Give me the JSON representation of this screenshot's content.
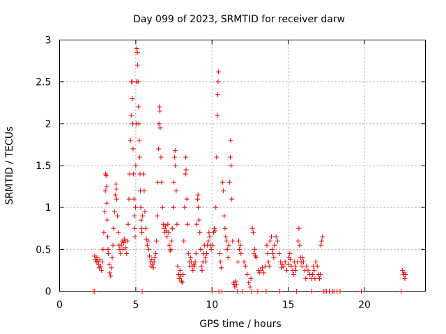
{
  "chart_data": {
    "type": "scatter",
    "title": "Day 099 of 2023, SRMTID for receiver darw",
    "xlabel": "GPS time / hours",
    "ylabel": "SRMTID / TECUs",
    "xlim": [
      0,
      24
    ],
    "ylim": [
      0,
      3
    ],
    "xticks": [
      0,
      5,
      10,
      15,
      20
    ],
    "xtick_labels": [
      "0",
      "5",
      "10",
      "15",
      "20"
    ],
    "yticks": [
      0,
      0.5,
      1,
      1.5,
      2,
      2.5,
      3
    ],
    "ytick_labels": [
      "0",
      "0.5",
      "1",
      "1.5",
      "2",
      "2.5",
      "3"
    ],
    "grid": true,
    "marker": "+",
    "color": "#e00000",
    "series": [
      {
        "name": "darw",
        "points": [
          [
            2.2,
            0.0
          ],
          [
            2.3,
            0.0
          ],
          [
            2.3,
            0.42
          ],
          [
            2.35,
            0.38
          ],
          [
            2.4,
            0.35
          ],
          [
            2.45,
            0.4
          ],
          [
            2.5,
            0.36
          ],
          [
            2.55,
            0.32
          ],
          [
            2.6,
            0.28
          ],
          [
            2.65,
            0.38
          ],
          [
            2.7,
            0.3
          ],
          [
            2.75,
            0.25
          ],
          [
            2.8,
            0.35
          ],
          [
            2.85,
            0.5
          ],
          [
            2.9,
            0.7
          ],
          [
            2.95,
            0.95
          ],
          [
            3.0,
            1.2
          ],
          [
            3.02,
            1.4
          ],
          [
            3.05,
            1.38
          ],
          [
            3.08,
            1.25
          ],
          [
            3.1,
            1.05
          ],
          [
            3.12,
            0.85
          ],
          [
            3.15,
            0.65
          ],
          [
            3.18,
            0.5
          ],
          [
            3.2,
            0.45
          ],
          [
            3.25,
            0.32
          ],
          [
            3.3,
            0.22
          ],
          [
            3.35,
            0.18
          ],
          [
            3.4,
            0.28
          ],
          [
            3.45,
            0.4
          ],
          [
            3.5,
            0.55
          ],
          [
            3.55,
            0.75
          ],
          [
            3.6,
            0.95
          ],
          [
            3.65,
            1.15
          ],
          [
            3.7,
            1.28
          ],
          [
            3.72,
            1.22
          ],
          [
            3.75,
            1.1
          ],
          [
            3.8,
            0.9
          ],
          [
            3.85,
            0.7
          ],
          [
            3.9,
            0.55
          ],
          [
            3.95,
            0.5
          ],
          [
            4.0,
            0.45
          ],
          [
            4.05,
            0.55
          ],
          [
            4.1,
            0.6
          ],
          [
            4.15,
            0.5
          ],
          [
            4.2,
            0.58
          ],
          [
            4.25,
            0.62
          ],
          [
            4.3,
            0.6
          ],
          [
            4.35,
            0.52
          ],
          [
            4.4,
            0.45
          ],
          [
            4.45,
            0.6
          ],
          [
            4.5,
            0.8
          ],
          [
            4.55,
            1.1
          ],
          [
            4.6,
            1.4
          ],
          [
            4.65,
            1.8
          ],
          [
            4.7,
            2.1
          ],
          [
            4.72,
            2.5
          ],
          [
            4.75,
            2.5
          ],
          [
            4.78,
            2.3
          ],
          [
            4.8,
            2.0
          ],
          [
            4.82,
            1.7
          ],
          [
            4.85,
            1.4
          ],
          [
            4.88,
            1.1
          ],
          [
            4.9,
            0.9
          ],
          [
            4.93,
            0.75
          ],
          [
            4.95,
            0.65
          ],
          [
            4.98,
            1.0
          ],
          [
            5.0,
            1.5
          ],
          [
            5.02,
            2.0
          ],
          [
            5.05,
            2.5
          ],
          [
            5.07,
            2.9
          ],
          [
            5.1,
            2.85
          ],
          [
            5.12,
            2.7
          ],
          [
            5.15,
            2.5
          ],
          [
            5.18,
            2.2
          ],
          [
            5.2,
            2.0
          ],
          [
            5.23,
            1.8
          ],
          [
            5.25,
            1.6
          ],
          [
            5.28,
            1.4
          ],
          [
            5.3,
            1.2
          ],
          [
            5.33,
            1.0
          ],
          [
            5.35,
            0.85
          ],
          [
            5.38,
            0.75
          ],
          [
            5.4,
            0.7
          ],
          [
            5.42,
            0.0
          ],
          [
            5.45,
            0.9
          ],
          [
            5.5,
            1.4
          ],
          [
            5.55,
            1.2
          ],
          [
            5.6,
            0.95
          ],
          [
            5.65,
            0.75
          ],
          [
            5.7,
            0.62
          ],
          [
            5.75,
            0.55
          ],
          [
            5.8,
            0.6
          ],
          [
            5.85,
            0.5
          ],
          [
            5.9,
            0.42
          ],
          [
            5.95,
            0.35
          ],
          [
            6.0,
            0.3
          ],
          [
            6.05,
            0.38
          ],
          [
            6.1,
            0.32
          ],
          [
            6.15,
            0.28
          ],
          [
            6.2,
            0.35
          ],
          [
            6.25,
            0.4
          ],
          [
            6.3,
            0.45
          ],
          [
            6.35,
            0.6
          ],
          [
            6.4,
            0.9
          ],
          [
            6.45,
            1.3
          ],
          [
            6.5,
            1.7
          ],
          [
            6.52,
            2.0
          ],
          [
            6.55,
            2.2
          ],
          [
            6.58,
            2.15
          ],
          [
            6.6,
            1.95
          ],
          [
            6.65,
            1.6
          ],
          [
            6.7,
            1.3
          ],
          [
            6.75,
            1.0
          ],
          [
            6.8,
            0.8
          ],
          [
            6.85,
            0.75
          ],
          [
            6.9,
            0.7
          ],
          [
            6.95,
            0.78
          ],
          [
            7.0,
            0.72
          ],
          [
            7.05,
            0.65
          ],
          [
            7.1,
            0.8
          ],
          [
            7.15,
            0.7
          ],
          [
            7.2,
            0.55
          ],
          [
            7.25,
            0.48
          ],
          [
            7.3,
            0.5
          ],
          [
            7.35,
            0.6
          ],
          [
            7.4,
            0.75
          ],
          [
            7.45,
            1.0
          ],
          [
            7.5,
            1.3
          ],
          [
            7.55,
            1.6
          ],
          [
            7.58,
            1.68
          ],
          [
            7.6,
            1.5
          ],
          [
            7.65,
            1.2
          ],
          [
            7.7,
            0.8
          ],
          [
            7.75,
            0.3
          ],
          [
            7.8,
            0.2
          ],
          [
            7.85,
            0.15
          ],
          [
            7.9,
            0.25
          ],
          [
            7.95,
            0.18
          ],
          [
            8.0,
            0.12
          ],
          [
            8.05,
            0.1
          ],
          [
            8.1,
            0.2
          ],
          [
            8.15,
            0.6
          ],
          [
            8.2,
            1.0
          ],
          [
            8.25,
            1.4
          ],
          [
            8.28,
            1.6
          ],
          [
            8.3,
            1.45
          ],
          [
            8.35,
            1.1
          ],
          [
            8.4,
            0.8
          ],
          [
            8.45,
            0.45
          ],
          [
            8.5,
            0.35
          ],
          [
            8.55,
            0.3
          ],
          [
            8.6,
            0.4
          ],
          [
            8.65,
            0.35
          ],
          [
            8.7,
            0.3
          ],
          [
            8.75,
            0.25
          ],
          [
            8.8,
            0.32
          ],
          [
            8.85,
            0.3
          ],
          [
            8.9,
            0.35
          ],
          [
            8.95,
            0.45
          ],
          [
            9.0,
            0.8
          ],
          [
            9.05,
            1.1
          ],
          [
            9.08,
            1.15
          ],
          [
            9.1,
            1.0
          ],
          [
            9.15,
            0.85
          ],
          [
            9.2,
            0.7
          ],
          [
            9.25,
            0.5
          ],
          [
            9.3,
            0.3
          ],
          [
            9.35,
            0.25
          ],
          [
            9.4,
            0.35
          ],
          [
            9.45,
            0.45
          ],
          [
            9.5,
            0.55
          ],
          [
            9.55,
            0.4
          ],
          [
            9.6,
            0.35
          ],
          [
            9.65,
            0.45
          ],
          [
            9.7,
            0.55
          ],
          [
            9.75,
            0.6
          ],
          [
            9.8,
            0.7
          ],
          [
            9.85,
            0.65
          ],
          [
            9.9,
            0.55
          ],
          [
            9.95,
            0.5
          ],
          [
            10.0,
            0.0
          ],
          [
            10.05,
            0.55
          ],
          [
            10.1,
            0.7
          ],
          [
            10.15,
            0.75
          ],
          [
            10.2,
            0.72
          ],
          [
            10.25,
            1.0
          ],
          [
            10.3,
            1.6
          ],
          [
            10.35,
            2.1
          ],
          [
            10.38,
            2.35
          ],
          [
            10.4,
            2.5
          ],
          [
            10.42,
            2.62
          ],
          [
            10.45,
            0.0
          ],
          [
            10.5,
            0.45
          ],
          [
            10.55,
            0.35
          ],
          [
            10.6,
            0.28
          ],
          [
            10.65,
            0.0
          ],
          [
            10.7,
            1.3
          ],
          [
            10.75,
            1.2
          ],
          [
            10.8,
            0.9
          ],
          [
            10.85,
            0.75
          ],
          [
            10.9,
            0.65
          ],
          [
            10.95,
            0.6
          ],
          [
            11.0,
            0.5
          ],
          [
            11.05,
            0.4
          ],
          [
            11.1,
            0.55
          ],
          [
            11.15,
            1.3
          ],
          [
            11.2,
            1.6
          ],
          [
            11.22,
            1.8
          ],
          [
            11.25,
            1.5
          ],
          [
            11.3,
            1.1
          ],
          [
            11.35,
            0.6
          ],
          [
            11.4,
            0.1
          ],
          [
            11.45,
            0.08
          ],
          [
            11.5,
            0.05
          ],
          [
            11.55,
            0.12
          ],
          [
            11.6,
            0.08
          ],
          [
            11.65,
            0.0
          ],
          [
            11.7,
            0.35
          ],
          [
            11.75,
            0.6
          ],
          [
            11.8,
            0.5
          ],
          [
            11.85,
            0.55
          ],
          [
            11.9,
            0.45
          ],
          [
            12.0,
            0.0
          ],
          [
            12.1,
            0.35
          ],
          [
            12.2,
            0.3
          ],
          [
            12.3,
            0.2
          ],
          [
            12.4,
            0.1
          ],
          [
            12.5,
            0.05
          ],
          [
            12.55,
            0.15
          ],
          [
            12.6,
            0.0
          ],
          [
            12.65,
            0.75
          ],
          [
            12.7,
            0.7
          ],
          [
            12.75,
            0.45
          ],
          [
            12.8,
            0.5
          ],
          [
            12.85,
            0.42
          ],
          [
            12.9,
            0.4
          ],
          [
            13.0,
            0.0
          ],
          [
            13.05,
            0.25
          ],
          [
            13.1,
            0.22
          ],
          [
            13.2,
            0.25
          ],
          [
            13.3,
            0.28
          ],
          [
            13.4,
            0.22
          ],
          [
            13.5,
            0.3
          ],
          [
            13.55,
            0.0
          ],
          [
            13.6,
            0.55
          ],
          [
            13.65,
            0.45
          ],
          [
            13.7,
            0.35
          ],
          [
            13.75,
            0.3
          ],
          [
            13.8,
            0.6
          ],
          [
            13.9,
            0.65
          ],
          [
            13.95,
            0.5
          ],
          [
            14.0,
            0.45
          ],
          [
            14.05,
            0.4
          ],
          [
            14.1,
            0.55
          ],
          [
            14.2,
            0.65
          ],
          [
            14.3,
            0.6
          ],
          [
            14.4,
            0.45
          ],
          [
            14.45,
            0.0
          ],
          [
            14.5,
            0.35
          ],
          [
            14.55,
            0.28
          ],
          [
            14.6,
            0.32
          ],
          [
            14.7,
            0.3
          ],
          [
            14.8,
            0.35
          ],
          [
            14.9,
            0.25
          ],
          [
            15.0,
            0.32
          ],
          [
            15.05,
            0.4
          ],
          [
            15.1,
            0.45
          ],
          [
            15.15,
            0.38
          ],
          [
            15.2,
            0.3
          ],
          [
            15.3,
            0.25
          ],
          [
            15.35,
            0.2
          ],
          [
            15.4,
            0.35
          ],
          [
            15.45,
            0.3
          ],
          [
            15.5,
            0.25
          ],
          [
            15.55,
            0.0
          ],
          [
            15.6,
            0.35
          ],
          [
            15.65,
            0.6
          ],
          [
            15.7,
            0.75
          ],
          [
            15.75,
            0.55
          ],
          [
            15.8,
            0.4
          ],
          [
            15.85,
            0.35
          ],
          [
            15.9,
            0.3
          ],
          [
            15.95,
            0.4
          ],
          [
            16.0,
            0.35
          ],
          [
            16.1,
            0.25
          ],
          [
            16.15,
            0.15
          ],
          [
            16.2,
            0.3
          ],
          [
            16.3,
            0.25
          ],
          [
            16.4,
            0.2
          ],
          [
            16.5,
            0.15
          ],
          [
            16.55,
            0.0
          ],
          [
            16.6,
            0.2
          ],
          [
            16.65,
            0.3
          ],
          [
            16.7,
            0.25
          ],
          [
            16.75,
            0.15
          ],
          [
            16.8,
            0.35
          ],
          [
            16.9,
            0.3
          ],
          [
            17.0,
            0.2
          ],
          [
            17.05,
            0.15
          ],
          [
            17.1,
            0.2
          ],
          [
            17.15,
            0.55
          ],
          [
            17.2,
            0.6
          ],
          [
            17.25,
            0.65
          ],
          [
            17.3,
            0.0
          ],
          [
            17.4,
            0.0
          ],
          [
            17.5,
            0.0
          ],
          [
            17.7,
            0.0
          ],
          [
            17.9,
            0.0
          ],
          [
            18.0,
            0.0
          ],
          [
            18.2,
            0.0
          ],
          [
            18.4,
            0.0
          ],
          [
            19.8,
            0.0
          ],
          [
            22.4,
            0.0
          ],
          [
            22.5,
            0.25
          ],
          [
            22.55,
            0.2
          ],
          [
            22.6,
            0.22
          ],
          [
            22.65,
            0.15
          ],
          [
            22.7,
            0.2
          ]
        ]
      }
    ]
  }
}
